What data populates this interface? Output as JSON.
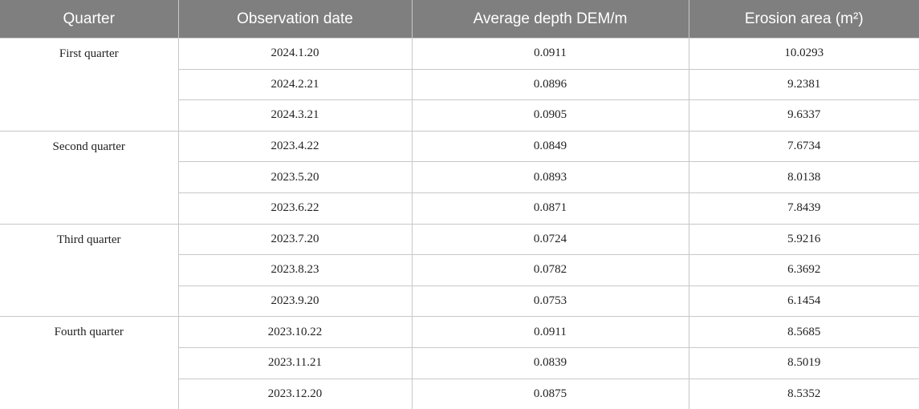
{
  "table": {
    "header": [
      "Quarter",
      "Observation date",
      "Average depth DEM/m",
      "Erosion area (m²)"
    ],
    "groups": [
      {
        "quarter": "First quarter",
        "rows": [
          [
            "2024.1.20",
            "0.0911",
            "10.0293"
          ],
          [
            "2024.2.21",
            "0.0896",
            "9.2381"
          ],
          [
            "2024.3.21",
            "0.0905",
            "9.6337"
          ]
        ]
      },
      {
        "quarter": "Second quarter",
        "rows": [
          [
            "2023.4.22",
            "0.0849",
            "7.6734"
          ],
          [
            "2023.5.20",
            "0.0893",
            "8.0138"
          ],
          [
            "2023.6.22",
            "0.0871",
            "7.8439"
          ]
        ]
      },
      {
        "quarter": "Third quarter",
        "rows": [
          [
            "2023.7.20",
            "0.0724",
            "5.9216"
          ],
          [
            "2023.8.23",
            "0.0782",
            "6.3692"
          ],
          [
            "2023.9.20",
            "0.0753",
            "6.1454"
          ]
        ]
      },
      {
        "quarter": "Fourth quarter",
        "rows": [
          [
            "2023.10.22",
            "0.0911",
            "8.5685"
          ],
          [
            "2023.11.21",
            "0.0839",
            "8.5019"
          ],
          [
            "2023.12.20",
            "0.0875",
            "8.5352"
          ]
        ]
      }
    ]
  }
}
